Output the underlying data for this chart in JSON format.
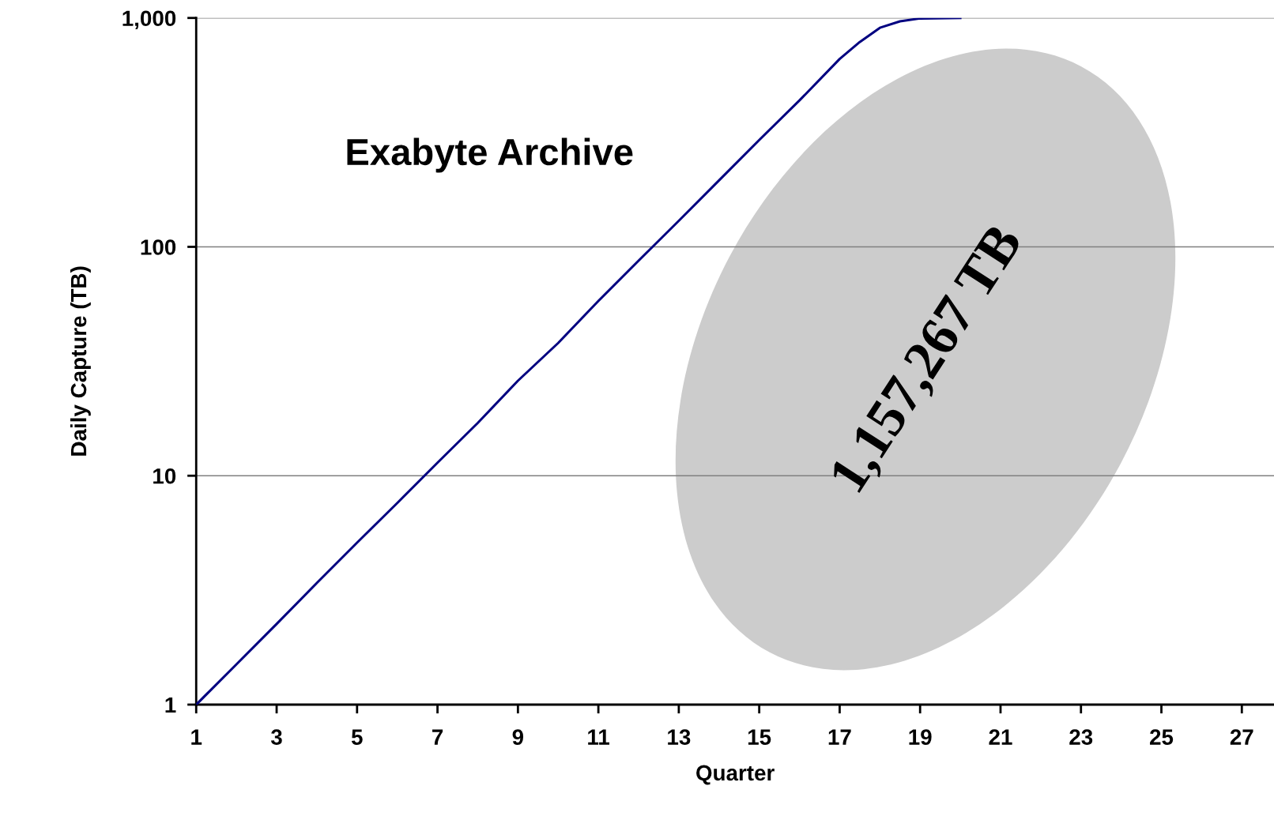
{
  "chart_data": {
    "type": "line",
    "xlabel": "Quarter",
    "ylabel": "Daily Capture (TB)",
    "x": [
      1,
      2,
      3,
      4,
      5,
      6,
      7,
      8,
      9,
      10,
      11,
      12,
      13,
      14,
      15,
      16,
      17,
      17.5,
      18,
      18.5,
      19,
      20
    ],
    "values": [
      1,
      1.5,
      2.25,
      3.4,
      5.1,
      7.6,
      11.4,
      17,
      26,
      38,
      58,
      87,
      130,
      195,
      293,
      436,
      662,
      785,
      906,
      966,
      995,
      1000
    ],
    "color": "#000080",
    "xlim": [
      1,
      27.8
    ],
    "xticks": [
      1,
      3,
      5,
      7,
      9,
      11,
      13,
      15,
      17,
      19,
      21,
      23,
      25,
      27
    ],
    "ylim": [
      1,
      1000
    ],
    "yticks": [
      1,
      10,
      100,
      {
        "value": 1000,
        "label": "1,000"
      }
    ],
    "log": true,
    "grid": "y",
    "annotations": [
      "Exabyte Archive",
      "1,157,267 TB"
    ]
  }
}
